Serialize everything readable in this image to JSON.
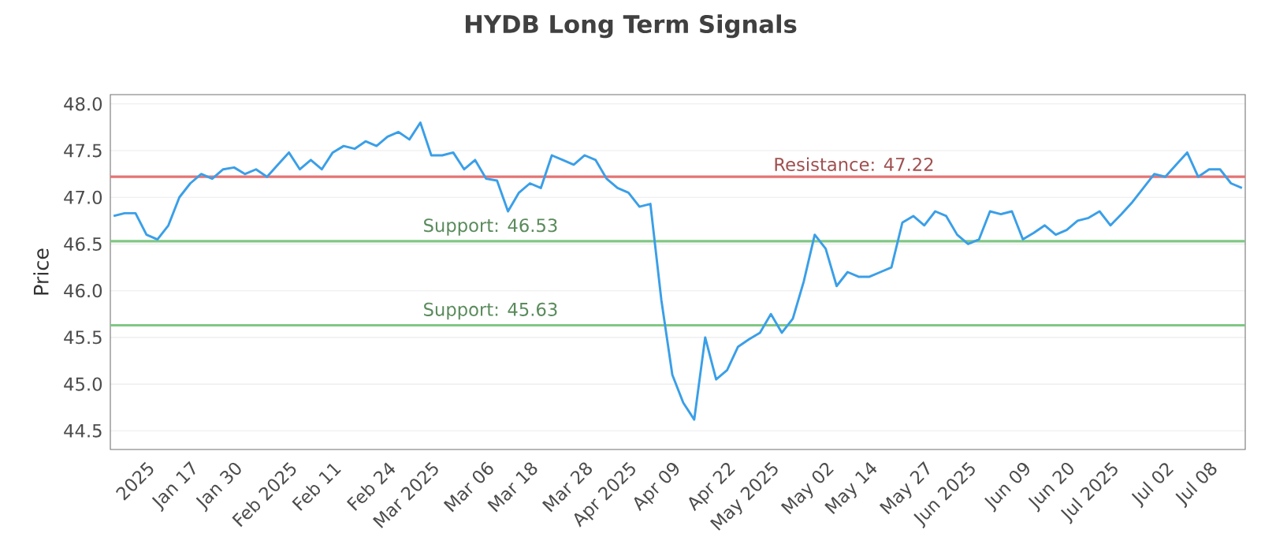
{
  "chart_data": {
    "type": "line",
    "title": "HYDB Long Term Signals",
    "ylabel": "Price",
    "categories": [
      null,
      null,
      null,
      "2025",
      null,
      null,
      null,
      "Jan 17",
      null,
      null,
      null,
      "Jan 30",
      null,
      null,
      null,
      null,
      "Feb 2025",
      null,
      null,
      null,
      "Feb 11",
      null,
      null,
      null,
      null,
      "Feb 24",
      null,
      null,
      null,
      "Mar 2025",
      null,
      null,
      null,
      null,
      "Mar 06",
      null,
      null,
      null,
      "Mar 18",
      null,
      null,
      null,
      null,
      "Mar 28",
      null,
      null,
      null,
      "Apr 2025",
      null,
      null,
      null,
      "Apr 09",
      null,
      null,
      null,
      null,
      "Apr 22",
      null,
      null,
      null,
      "May 2025",
      null,
      null,
      null,
      null,
      "May 02",
      null,
      null,
      null,
      "May 14",
      null,
      null,
      null,
      null,
      "May 27",
      null,
      null,
      null,
      "Jun 2025",
      null,
      null,
      null,
      null,
      "Jun 09",
      null,
      null,
      null,
      "Jun 20",
      null,
      null,
      null,
      "Jul 2025",
      null,
      null,
      null,
      null,
      "Jul 02",
      null,
      null,
      null,
      "Jul 08",
      null,
      null,
      null
    ],
    "series": [
      {
        "color": "#3a9fe8",
        "values": [
          46.8,
          46.83,
          46.83,
          46.6,
          46.55,
          46.7,
          47.0,
          47.15,
          47.25,
          47.2,
          47.3,
          47.32,
          47.25,
          47.3,
          47.22,
          47.35,
          47.48,
          47.3,
          47.4,
          47.3,
          47.48,
          47.55,
          47.52,
          47.6,
          47.55,
          47.65,
          47.7,
          47.62,
          47.8,
          47.45,
          47.45,
          47.48,
          47.3,
          47.4,
          47.2,
          47.18,
          46.85,
          47.05,
          47.15,
          47.1,
          47.45,
          47.4,
          47.35,
          47.45,
          47.4,
          47.2,
          47.1,
          47.05,
          46.9,
          46.93,
          45.9,
          45.1,
          44.8,
          44.62,
          45.5,
          45.05,
          45.15,
          45.4,
          45.48,
          45.55,
          45.75,
          45.55,
          45.7,
          46.1,
          46.6,
          46.45,
          46.05,
          46.2,
          46.15,
          46.15,
          46.2,
          46.25,
          46.73,
          46.8,
          46.7,
          46.85,
          46.8,
          46.6,
          46.5,
          46.55,
          46.85,
          46.82,
          46.85,
          46.55,
          46.62,
          46.7,
          46.6,
          46.65,
          46.75,
          46.78,
          46.85,
          46.7,
          46.82,
          46.95,
          47.1,
          47.25,
          47.22,
          47.35,
          47.48,
          47.22,
          47.3,
          47.3,
          47.15,
          47.1
        ]
      }
    ],
    "ylim": [
      44.3,
      48.1
    ],
    "yticks": [
      44.5,
      {
        "value": 45,
        "label": "45.0"
      },
      45.5,
      {
        "value": 46,
        "label": "46.0"
      },
      46.5,
      {
        "value": 47,
        "label": "47.0"
      },
      47.5,
      {
        "value": 48,
        "label": "48.0"
      }
    ],
    "ref_lines": [
      {
        "axis": "y",
        "value": 47.22,
        "label": "Resistance: 47.22",
        "color": "#e57373"
      },
      {
        "axis": "y",
        "value": 46.53,
        "label": "Support: 46.53",
        "color": "#81c784"
      },
      {
        "axis": "y",
        "value": 45.63,
        "label": "Support: 45.63",
        "color": "#81c784"
      }
    ],
    "grid": "y",
    "marker": "none",
    "line_style": "solid"
  }
}
